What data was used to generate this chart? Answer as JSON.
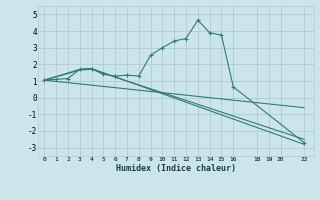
{
  "xlabel": "Humidex (Indice chaleur)",
  "bg_color": "#cce5ea",
  "grid_color": "#b0cdd4",
  "line_color": "#2e7d6e",
  "xlim": [
    -0.5,
    22.8
  ],
  "ylim": [
    -3.5,
    5.5
  ],
  "xticks": [
    0,
    1,
    2,
    3,
    4,
    5,
    6,
    7,
    8,
    9,
    10,
    11,
    12,
    13,
    14,
    15,
    16,
    18,
    19,
    20,
    22
  ],
  "yticks": [
    -3,
    -2,
    -1,
    0,
    1,
    2,
    3,
    4,
    5
  ],
  "series": [
    {
      "x": [
        0,
        1,
        2,
        3,
        4,
        5,
        6,
        7,
        8,
        9,
        10,
        11,
        12,
        13,
        14,
        15,
        16,
        22
      ],
      "y": [
        1.05,
        1.1,
        1.15,
        1.7,
        1.75,
        1.4,
        1.3,
        1.35,
        1.3,
        2.55,
        3.0,
        3.4,
        3.55,
        4.65,
        3.9,
        3.75,
        0.65,
        -2.7
      ],
      "marker": "+"
    },
    {
      "x": [
        0,
        3,
        4,
        22
      ],
      "y": [
        1.05,
        1.7,
        1.75,
        -2.8
      ],
      "marker": null
    },
    {
      "x": [
        0,
        3,
        4,
        22
      ],
      "y": [
        1.05,
        1.65,
        1.7,
        -2.5
      ],
      "marker": null
    },
    {
      "x": [
        0,
        22
      ],
      "y": [
        1.05,
        -0.6
      ],
      "marker": null
    }
  ]
}
